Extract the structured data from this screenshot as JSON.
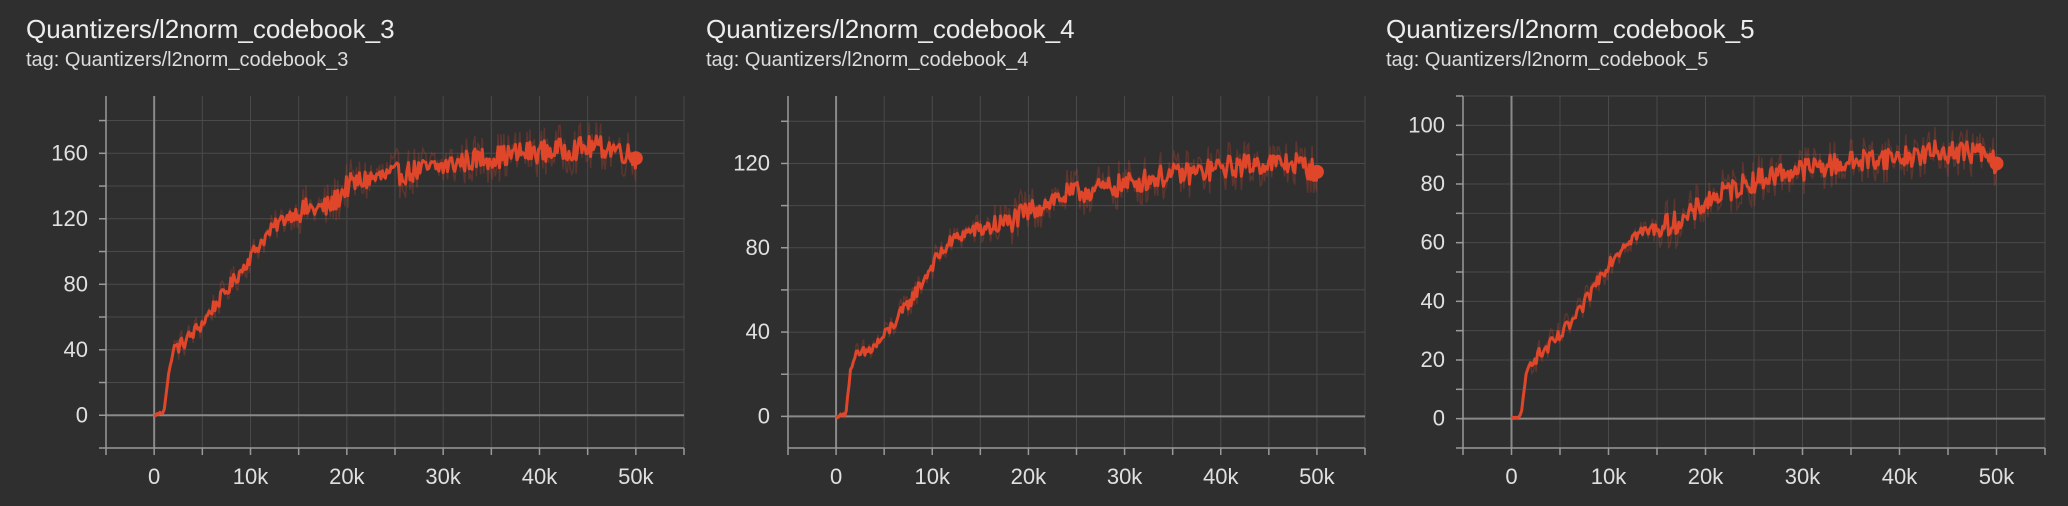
{
  "chart_data": [
    {
      "type": "line",
      "title": "Quantizers/l2norm_codebook_3",
      "subtitle": "tag: Quantizers/l2norm_codebook_3",
      "xlim": [
        -5000,
        55000
      ],
      "ylim": [
        -20,
        195
      ],
      "x_ticks": [
        0,
        10000,
        20000,
        30000,
        40000,
        50000
      ],
      "x_tick_labels": [
        "0",
        "10k",
        "20k",
        "30k",
        "40k",
        "50k"
      ],
      "y_ticks": [
        0,
        40,
        80,
        120,
        160
      ],
      "y_tick_labels": [
        "0",
        "40",
        "80",
        "120",
        "160"
      ],
      "grid": true,
      "color": "#e0462a",
      "series": [
        {
          "x": [
            0,
            1000,
            1500,
            2000,
            3000,
            4000,
            5000,
            6000,
            7000,
            8000,
            9000,
            10000,
            11000,
            12000,
            13000,
            14000,
            15000,
            16000,
            17000,
            18000,
            19000,
            20000,
            22000,
            24000,
            26000,
            28000,
            30000,
            32000,
            34000,
            36000,
            38000,
            40000,
            42000,
            44000,
            46000,
            48000,
            50000
          ],
          "y": [
            0,
            2,
            25,
            40,
            44,
            50,
            56,
            65,
            72,
            80,
            88,
            97,
            105,
            112,
            118,
            122,
            124,
            126,
            126,
            127,
            132,
            140,
            144,
            146,
            148,
            150,
            152,
            155,
            157,
            158,
            160,
            161,
            162,
            163,
            164,
            163,
            157
          ]
        }
      ]
    },
    {
      "type": "line",
      "title": "Quantizers/l2norm_codebook_4",
      "subtitle": "tag: Quantizers/l2norm_codebook_4",
      "xlim": [
        -5000,
        55000
      ],
      "ylim": [
        -15,
        152
      ],
      "x_ticks": [
        0,
        10000,
        20000,
        30000,
        40000,
        50000
      ],
      "x_tick_labels": [
        "0",
        "10k",
        "20k",
        "30k",
        "40k",
        "50k"
      ],
      "y_ticks": [
        0,
        40,
        80,
        120
      ],
      "y_tick_labels": [
        "0",
        "40",
        "80",
        "120"
      ],
      "grid": true,
      "color": "#e0462a",
      "series": [
        {
          "x": [
            0,
            1000,
            1500,
            2000,
            3000,
            4000,
            5000,
            6000,
            7000,
            8000,
            9000,
            10000,
            11000,
            12000,
            13000,
            14000,
            15000,
            16000,
            17000,
            18000,
            20000,
            22000,
            24000,
            26000,
            28000,
            30000,
            32000,
            34000,
            36000,
            38000,
            40000,
            42000,
            44000,
            46000,
            48000,
            50000
          ],
          "y": [
            0,
            1,
            22,
            28,
            30,
            33,
            38,
            44,
            50,
            57,
            64,
            72,
            78,
            83,
            86,
            88,
            89,
            90,
            91,
            92,
            97,
            102,
            105,
            107,
            108,
            110,
            112,
            114,
            115,
            116,
            118,
            119,
            120,
            120,
            120,
            116
          ]
        }
      ]
    },
    {
      "type": "line",
      "title": "Quantizers/l2norm_codebook_5",
      "subtitle": "tag: Quantizers/l2norm_codebook_5",
      "xlim": [
        -5000,
        55000
      ],
      "ylim": [
        -10,
        110
      ],
      "x_ticks": [
        0,
        10000,
        20000,
        30000,
        40000,
        50000
      ],
      "x_tick_labels": [
        "0",
        "10k",
        "20k",
        "30k",
        "40k",
        "50k"
      ],
      "y_ticks": [
        0,
        20,
        40,
        60,
        80,
        100
      ],
      "y_tick_labels": [
        "0",
        "20",
        "40",
        "60",
        "80",
        "100"
      ],
      "grid": true,
      "color": "#e0462a",
      "series": [
        {
          "x": [
            0,
            1000,
            1500,
            2000,
            3000,
            4000,
            5000,
            6000,
            7000,
            8000,
            9000,
            10000,
            11000,
            12000,
            13000,
            14000,
            15000,
            16000,
            17000,
            18000,
            20000,
            22000,
            24000,
            26000,
            28000,
            30000,
            32000,
            34000,
            36000,
            38000,
            40000,
            42000,
            44000,
            46000,
            48000,
            50000
          ],
          "y": [
            0,
            1,
            15,
            20,
            22,
            25,
            28,
            32,
            36,
            42,
            48,
            53,
            57,
            61,
            63,
            64,
            65,
            66,
            67,
            68,
            74,
            77,
            80,
            82,
            84,
            85,
            86,
            87,
            88,
            89,
            89,
            90,
            91,
            91,
            91,
            87
          ]
        }
      ]
    }
  ]
}
